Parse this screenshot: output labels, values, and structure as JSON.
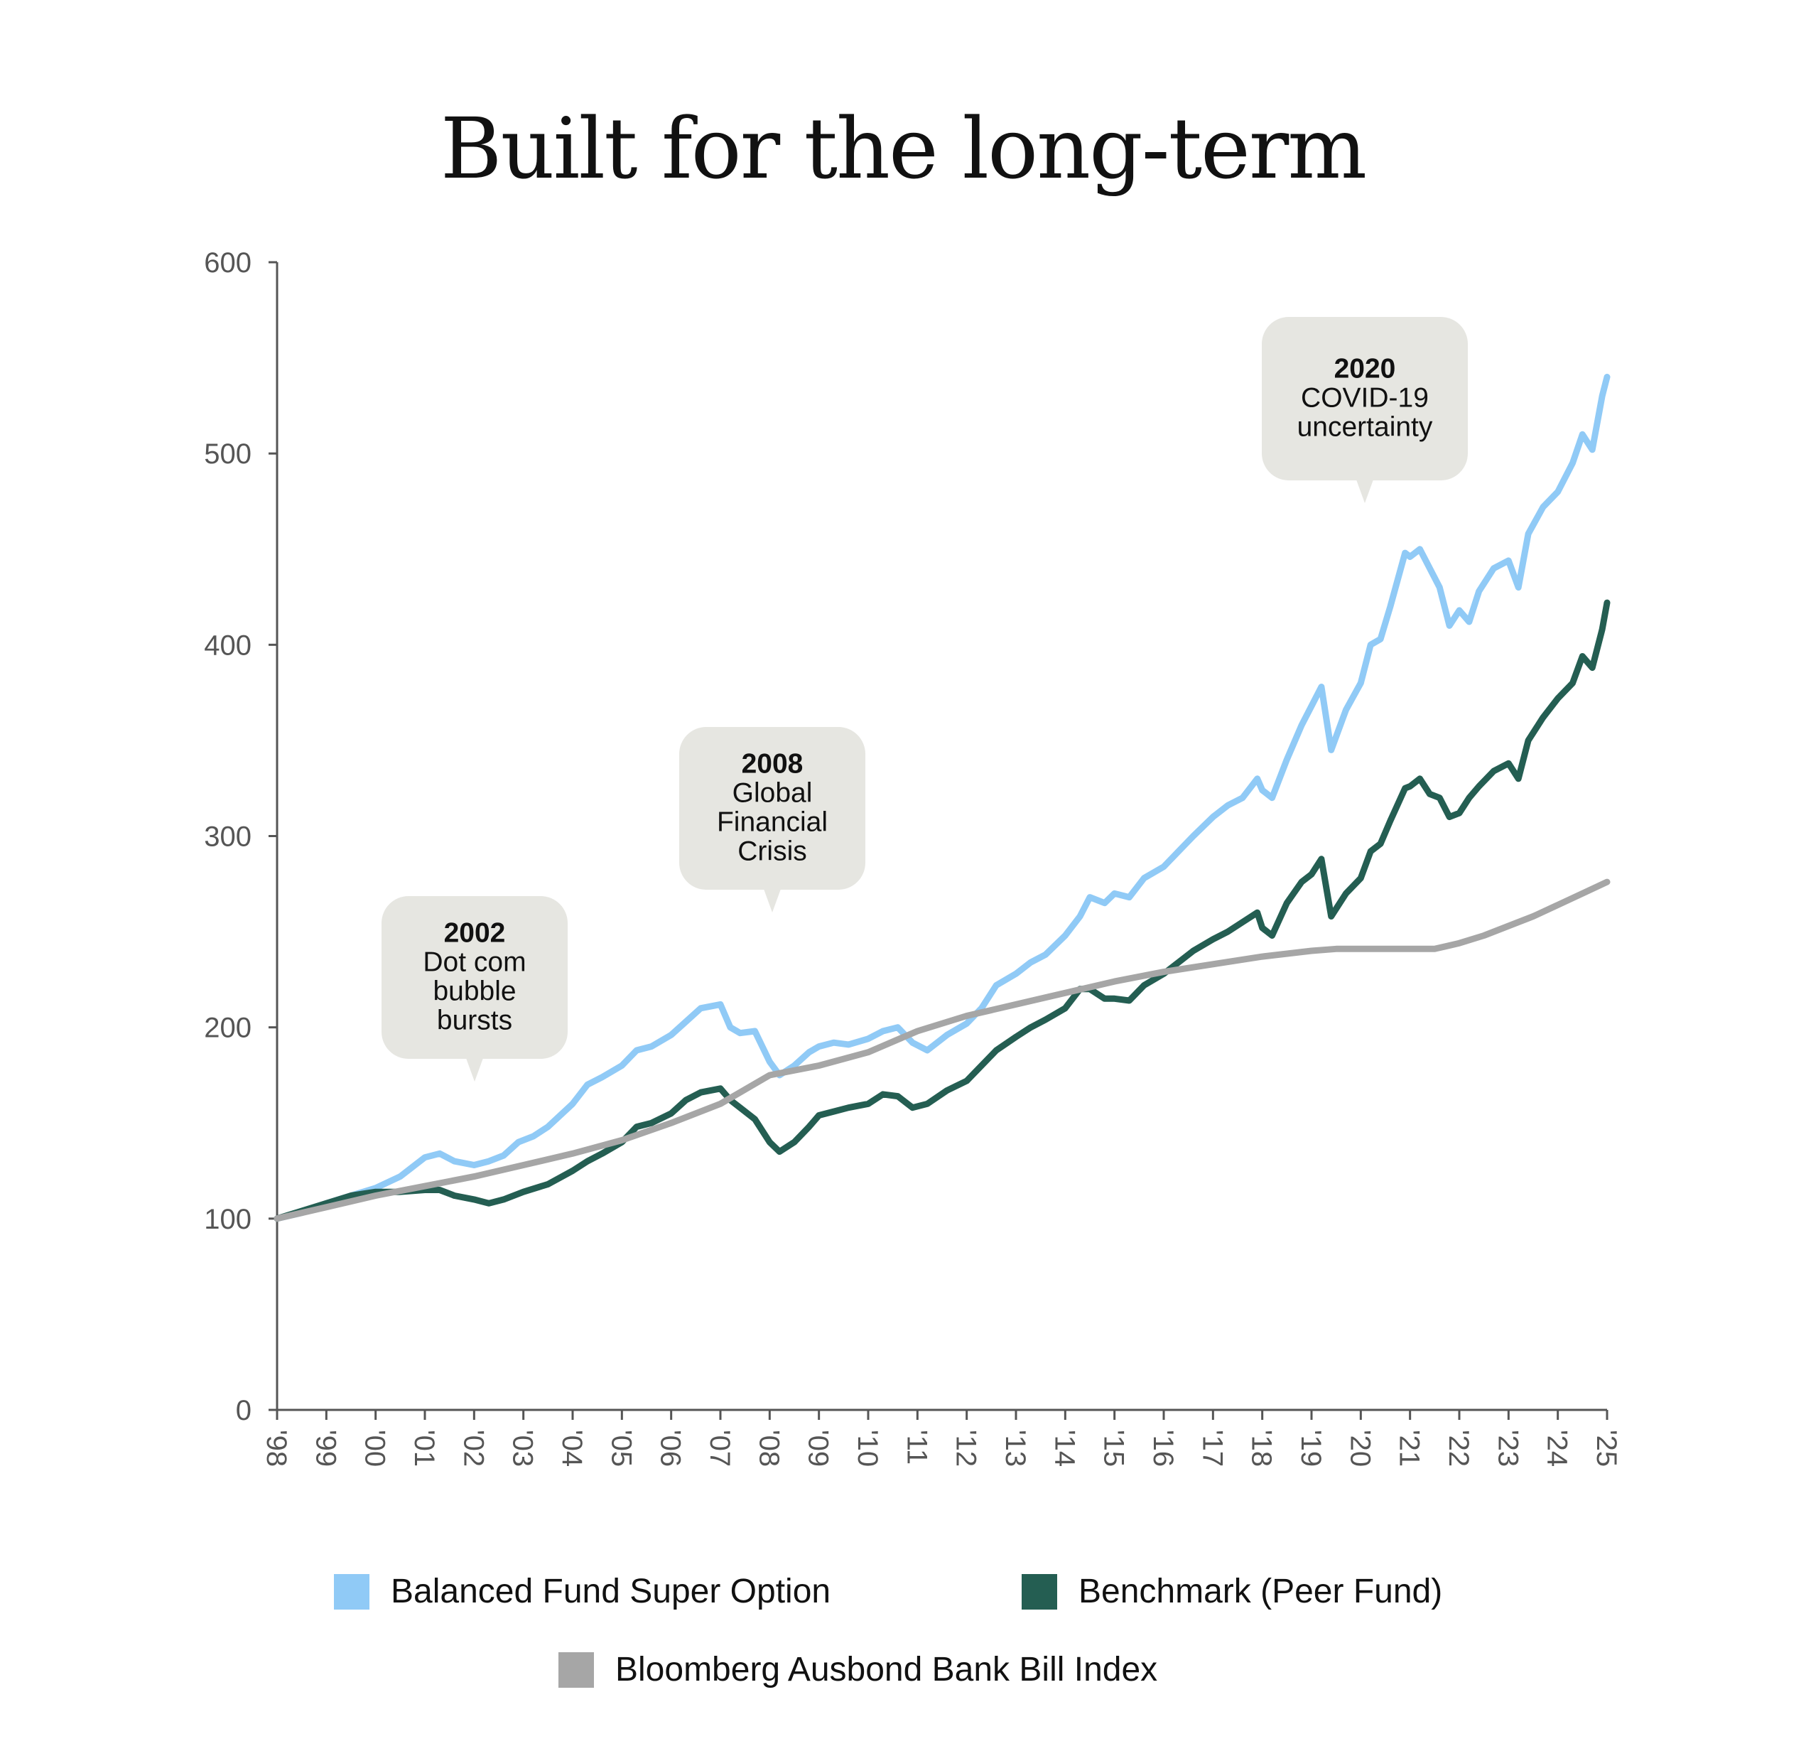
{
  "chart_data": {
    "type": "line",
    "title": "Built for the long-term",
    "xlabel": "",
    "ylabel": "",
    "ylim": [
      0,
      600
    ],
    "yticks": [
      0,
      100,
      200,
      300,
      400,
      500,
      600
    ],
    "xlim": [
      1998,
      2025
    ],
    "xticks": [
      "'98",
      "'99",
      "'00",
      "'01",
      "'02",
      "'03",
      "'04",
      "'05",
      "'06",
      "'07",
      "'08",
      "'09",
      "'10",
      "'11",
      "'12",
      "'13",
      "'14",
      "'15",
      "'16",
      "'17",
      "'18",
      "'19",
      "'20",
      "'21",
      "'22",
      "'23",
      "'24",
      "'25"
    ],
    "grid": false,
    "legend_position": "bottom",
    "series": [
      {
        "name": "Balanced Fund Super Option",
        "color": "#90CAF6",
        "points": [
          [
            1998.0,
            100
          ],
          [
            1998.5,
            103
          ],
          [
            1999.0,
            108
          ],
          [
            1999.5,
            112
          ],
          [
            2000.0,
            116
          ],
          [
            2000.5,
            122
          ],
          [
            2001.0,
            132
          ],
          [
            2001.3,
            134
          ],
          [
            2001.6,
            130
          ],
          [
            2002.0,
            128
          ],
          [
            2002.3,
            130
          ],
          [
            2002.6,
            133
          ],
          [
            2002.9,
            140
          ],
          [
            2003.2,
            143
          ],
          [
            2003.5,
            148
          ],
          [
            2004.0,
            160
          ],
          [
            2004.3,
            170
          ],
          [
            2004.6,
            174
          ],
          [
            2005.0,
            180
          ],
          [
            2005.3,
            188
          ],
          [
            2005.6,
            190
          ],
          [
            2006.0,
            196
          ],
          [
            2006.3,
            203
          ],
          [
            2006.6,
            210
          ],
          [
            2007.0,
            212
          ],
          [
            2007.2,
            200
          ],
          [
            2007.4,
            197
          ],
          [
            2007.7,
            198
          ],
          [
            2008.0,
            182
          ],
          [
            2008.2,
            175
          ],
          [
            2008.5,
            180
          ],
          [
            2008.8,
            187
          ],
          [
            2009.0,
            190
          ],
          [
            2009.3,
            192
          ],
          [
            2009.6,
            191
          ],
          [
            2010.0,
            194
          ],
          [
            2010.3,
            198
          ],
          [
            2010.6,
            200
          ],
          [
            2010.9,
            192
          ],
          [
            2011.2,
            188
          ],
          [
            2011.6,
            196
          ],
          [
            2012.0,
            202
          ],
          [
            2012.3,
            210
          ],
          [
            2012.6,
            222
          ],
          [
            2013.0,
            228
          ],
          [
            2013.3,
            234
          ],
          [
            2013.6,
            238
          ],
          [
            2014.0,
            248
          ],
          [
            2014.3,
            258
          ],
          [
            2014.5,
            268
          ],
          [
            2014.8,
            265
          ],
          [
            2015.0,
            270
          ],
          [
            2015.3,
            268
          ],
          [
            2015.6,
            278
          ],
          [
            2016.0,
            284
          ],
          [
            2016.3,
            292
          ],
          [
            2016.6,
            300
          ],
          [
            2017.0,
            310
          ],
          [
            2017.3,
            316
          ],
          [
            2017.6,
            320
          ],
          [
            2017.9,
            330
          ],
          [
            2018.0,
            324
          ],
          [
            2018.2,
            320
          ],
          [
            2018.5,
            340
          ],
          [
            2018.8,
            358
          ],
          [
            2019.0,
            368
          ],
          [
            2019.2,
            378
          ],
          [
            2019.4,
            345
          ],
          [
            2019.7,
            366
          ],
          [
            2020.0,
            380
          ],
          [
            2020.2,
            400
          ],
          [
            2020.4,
            403
          ],
          [
            2020.6,
            420
          ],
          [
            2020.9,
            448
          ],
          [
            2021.0,
            446
          ],
          [
            2021.2,
            450
          ],
          [
            2021.4,
            440
          ],
          [
            2021.6,
            430
          ],
          [
            2021.8,
            410
          ],
          [
            2022.0,
            418
          ],
          [
            2022.2,
            412
          ],
          [
            2022.4,
            428
          ],
          [
            2022.7,
            440
          ],
          [
            2023.0,
            444
          ],
          [
            2023.2,
            430
          ],
          [
            2023.4,
            458
          ],
          [
            2023.7,
            472
          ],
          [
            2024.0,
            480
          ],
          [
            2024.3,
            495
          ],
          [
            2024.5,
            510
          ],
          [
            2024.7,
            502
          ],
          [
            2024.9,
            530
          ],
          [
            2025.0,
            540
          ]
        ]
      },
      {
        "name": "Benchmark (Peer Fund)",
        "color": "#245E52",
        "points": [
          [
            1998.0,
            100
          ],
          [
            1998.5,
            104
          ],
          [
            1999.0,
            108
          ],
          [
            1999.5,
            112
          ],
          [
            2000.0,
            114
          ],
          [
            2000.5,
            114
          ],
          [
            2001.0,
            115
          ],
          [
            2001.3,
            115
          ],
          [
            2001.6,
            112
          ],
          [
            2002.0,
            110
          ],
          [
            2002.3,
            108
          ],
          [
            2002.6,
            110
          ],
          [
            2003.0,
            114
          ],
          [
            2003.5,
            118
          ],
          [
            2004.0,
            125
          ],
          [
            2004.3,
            130
          ],
          [
            2004.6,
            134
          ],
          [
            2005.0,
            140
          ],
          [
            2005.3,
            148
          ],
          [
            2005.6,
            150
          ],
          [
            2006.0,
            155
          ],
          [
            2006.3,
            162
          ],
          [
            2006.6,
            166
          ],
          [
            2007.0,
            168
          ],
          [
            2007.2,
            162
          ],
          [
            2007.4,
            158
          ],
          [
            2007.7,
            152
          ],
          [
            2008.0,
            140
          ],
          [
            2008.2,
            135
          ],
          [
            2008.5,
            140
          ],
          [
            2008.8,
            148
          ],
          [
            2009.0,
            154
          ],
          [
            2009.3,
            156
          ],
          [
            2009.6,
            158
          ],
          [
            2010.0,
            160
          ],
          [
            2010.3,
            165
          ],
          [
            2010.6,
            164
          ],
          [
            2010.9,
            158
          ],
          [
            2011.2,
            160
          ],
          [
            2011.6,
            167
          ],
          [
            2012.0,
            172
          ],
          [
            2012.3,
            180
          ],
          [
            2012.6,
            188
          ],
          [
            2013.0,
            195
          ],
          [
            2013.3,
            200
          ],
          [
            2013.6,
            204
          ],
          [
            2014.0,
            210
          ],
          [
            2014.3,
            220
          ],
          [
            2014.5,
            220
          ],
          [
            2014.8,
            215
          ],
          [
            2015.0,
            215
          ],
          [
            2015.3,
            214
          ],
          [
            2015.6,
            222
          ],
          [
            2016.0,
            228
          ],
          [
            2016.3,
            234
          ],
          [
            2016.6,
            240
          ],
          [
            2017.0,
            246
          ],
          [
            2017.3,
            250
          ],
          [
            2017.6,
            255
          ],
          [
            2017.9,
            260
          ],
          [
            2018.0,
            252
          ],
          [
            2018.2,
            248
          ],
          [
            2018.5,
            265
          ],
          [
            2018.8,
            276
          ],
          [
            2019.0,
            280
          ],
          [
            2019.2,
            288
          ],
          [
            2019.4,
            258
          ],
          [
            2019.7,
            270
          ],
          [
            2020.0,
            278
          ],
          [
            2020.2,
            292
          ],
          [
            2020.4,
            296
          ],
          [
            2020.6,
            308
          ],
          [
            2020.9,
            325
          ],
          [
            2021.0,
            326
          ],
          [
            2021.2,
            330
          ],
          [
            2021.4,
            322
          ],
          [
            2021.6,
            320
          ],
          [
            2021.8,
            310
          ],
          [
            2022.0,
            312
          ],
          [
            2022.2,
            320
          ],
          [
            2022.4,
            326
          ],
          [
            2022.7,
            334
          ],
          [
            2023.0,
            338
          ],
          [
            2023.2,
            330
          ],
          [
            2023.4,
            350
          ],
          [
            2023.7,
            362
          ],
          [
            2024.0,
            372
          ],
          [
            2024.3,
            380
          ],
          [
            2024.5,
            394
          ],
          [
            2024.7,
            388
          ],
          [
            2024.9,
            408
          ],
          [
            2025.0,
            422
          ]
        ]
      },
      {
        "name": "Bloomberg Ausbond Bank Bill Index",
        "color": "#A6A6A6",
        "points": [
          [
            1998.0,
            100
          ],
          [
            1999.0,
            106
          ],
          [
            2000.0,
            112
          ],
          [
            2001.0,
            117
          ],
          [
            2002.0,
            122
          ],
          [
            2003.0,
            128
          ],
          [
            2004.0,
            134
          ],
          [
            2005.0,
            141
          ],
          [
            2006.0,
            150
          ],
          [
            2007.0,
            160
          ],
          [
            2008.0,
            175
          ],
          [
            2009.0,
            180
          ],
          [
            2010.0,
            187
          ],
          [
            2011.0,
            198
          ],
          [
            2012.0,
            206
          ],
          [
            2013.0,
            212
          ],
          [
            2014.0,
            218
          ],
          [
            2015.0,
            224
          ],
          [
            2016.0,
            229
          ],
          [
            2017.0,
            233
          ],
          [
            2018.0,
            237
          ],
          [
            2019.0,
            240
          ],
          [
            2019.5,
            241
          ],
          [
            2020.0,
            241
          ],
          [
            2021.0,
            241
          ],
          [
            2021.5,
            241
          ],
          [
            2022.0,
            244
          ],
          [
            2022.5,
            248
          ],
          [
            2023.0,
            253
          ],
          [
            2023.5,
            258
          ],
          [
            2024.0,
            264
          ],
          [
            2024.5,
            270
          ],
          [
            2025.0,
            276
          ]
        ]
      }
    ],
    "annotations": [
      {
        "year_label": "2002",
        "text": [
          "Dot com",
          "bubble",
          "bursts"
        ],
        "x": 2002.0
      },
      {
        "year_label": "2008",
        "text": [
          "Global",
          "Financial",
          "Crisis"
        ],
        "x": 2008.0
      },
      {
        "year_label": "2020",
        "text": [
          "COVID-19",
          "uncertainty"
        ],
        "x": 2020.0
      }
    ]
  },
  "colors": {
    "callout_bg": "#E6E6E1",
    "axis": "#555555"
  }
}
